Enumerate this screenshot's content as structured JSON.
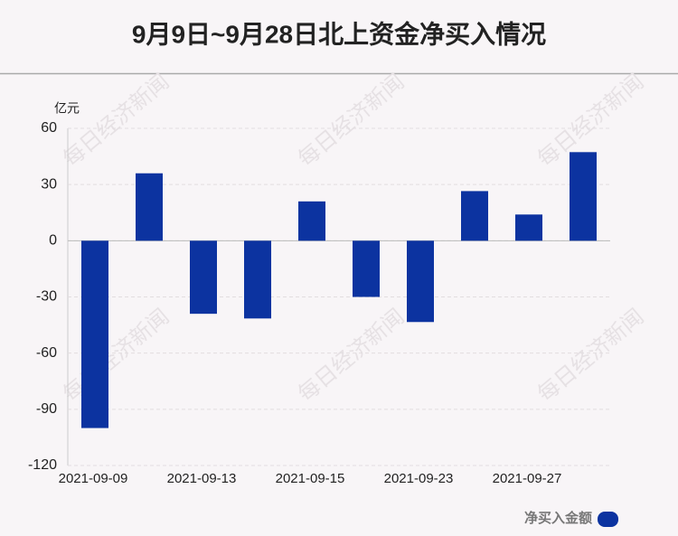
{
  "chart_data": {
    "type": "bar",
    "title": "9月9日~9月28日北上资金净买入情况",
    "y_unit": "亿元",
    "watermark": "每日经济新闻",
    "categories": [
      "2021-09-09",
      null,
      "2021-09-13",
      null,
      "2021-09-15",
      null,
      "2021-09-23",
      null,
      "2021-09-27",
      null
    ],
    "series": [
      {
        "name": "净买入金额",
        "color": "#0c33a0",
        "values": [
          -100,
          36,
          -39,
          -41.5,
          21,
          -30,
          -43.4,
          26.5,
          14,
          47.3
        ]
      }
    ],
    "ylim": [
      -120,
      60
    ],
    "yticks": [
      60,
      30,
      0,
      -30,
      -60,
      -90,
      -120
    ],
    "grid": true,
    "legend": "bottom-right"
  }
}
